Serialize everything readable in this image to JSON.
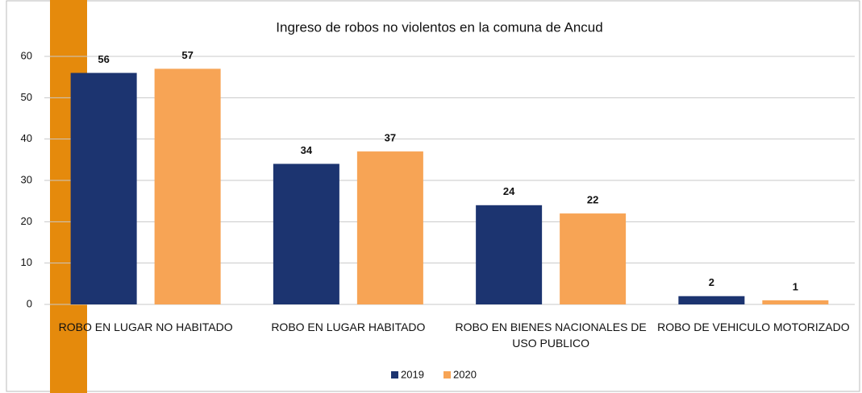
{
  "chart_data": {
    "type": "bar",
    "title": "Ingreso de robos no violentos en la comuna de Ancud",
    "categories": [
      "ROBO EN LUGAR NO HABITADO",
      "ROBO EN LUGAR HABITADO",
      "ROBO EN BIENES NACIONALES DE USO PUBLICO",
      "ROBO DE VEHICULO MOTORIZADO"
    ],
    "series": [
      {
        "name": "2019",
        "color": "#1c3470",
        "values": [
          56,
          34,
          24,
          2
        ]
      },
      {
        "name": "2020",
        "color": "#f7a455",
        "values": [
          57,
          37,
          22,
          1
        ]
      }
    ],
    "ylim": [
      0,
      60
    ],
    "yticks": [
      0,
      10,
      20,
      30,
      40,
      50,
      60
    ],
    "grid": true,
    "legend": "bottom"
  }
}
